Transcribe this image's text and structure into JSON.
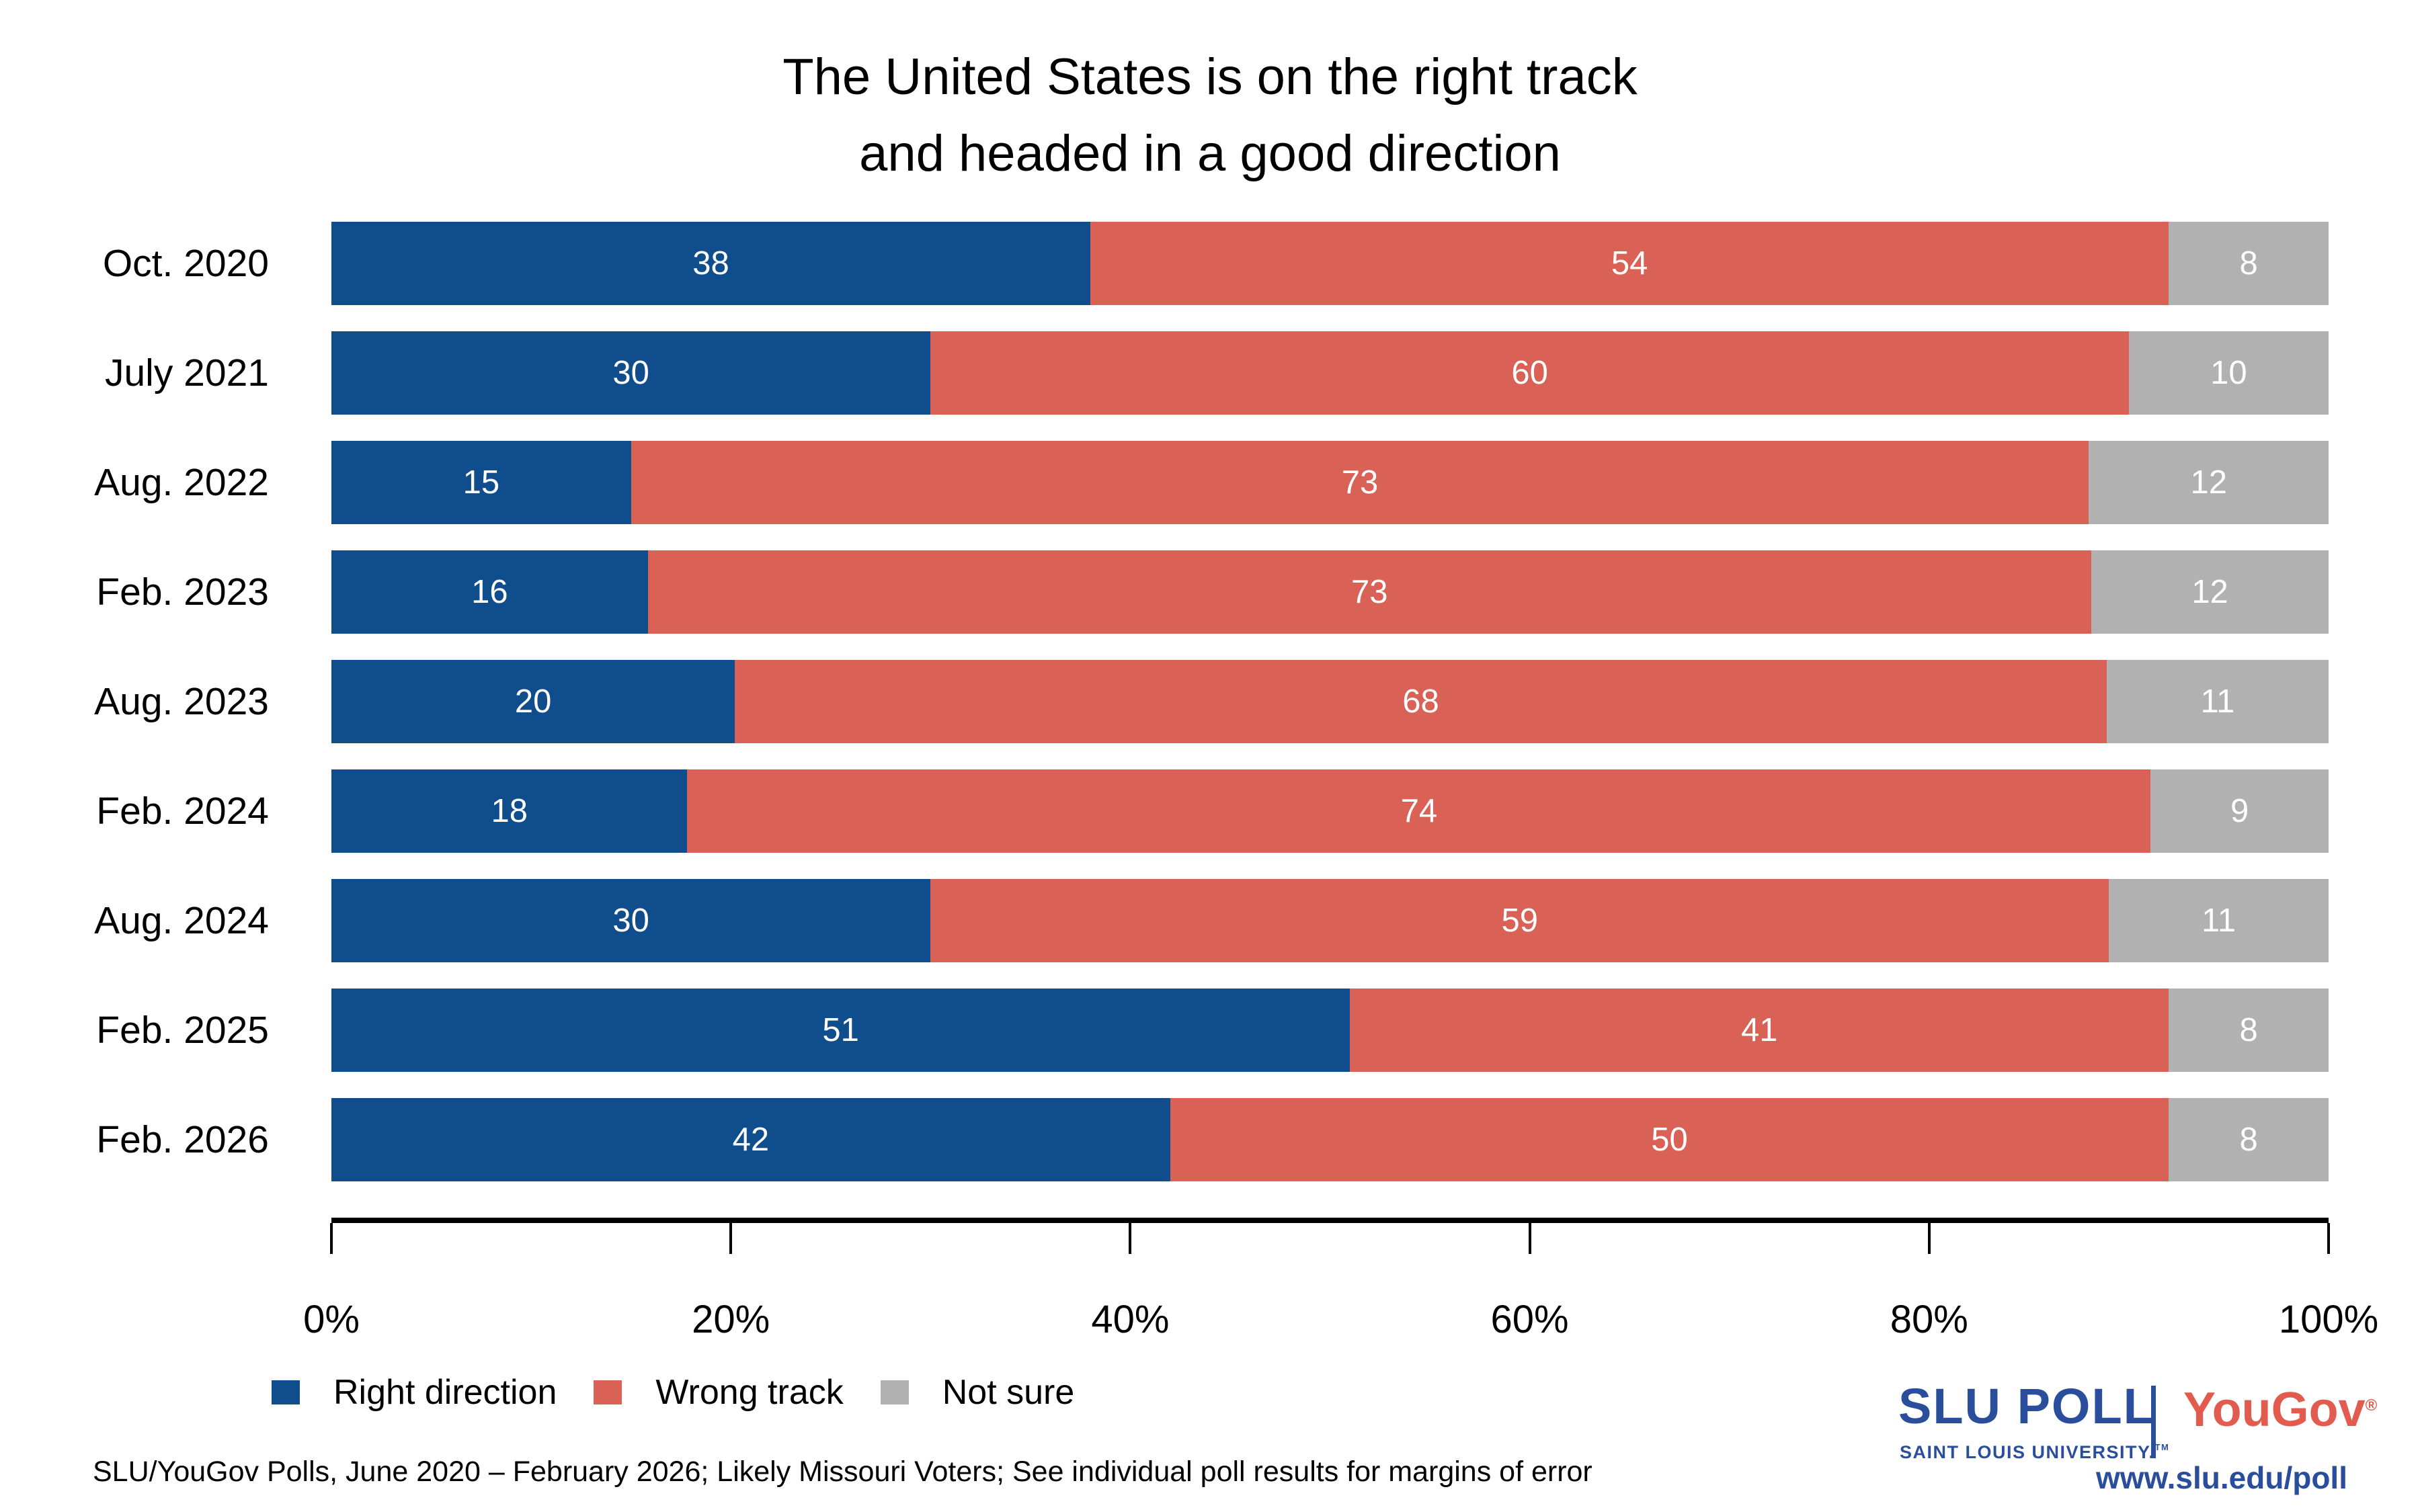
{
  "title": {
    "line1": "The United States is on the right track",
    "line2": "and headed in a good direction"
  },
  "chart_data": {
    "type": "bar",
    "stacked": true,
    "orientation": "horizontal",
    "title": "The United States is on the right track and headed in a good direction",
    "categories": [
      "Oct. 2020",
      "July 2021",
      "Aug. 2022",
      "Feb. 2023",
      "Aug. 2023",
      "Feb. 2024",
      "Aug. 2024",
      "Feb. 2025",
      "Feb. 2026"
    ],
    "series": [
      {
        "name": "Right direction",
        "color": "#104D8C",
        "values": [
          38,
          30,
          15,
          16,
          20,
          18,
          30,
          51,
          42
        ]
      },
      {
        "name": "Wrong track",
        "color": "#DA6156",
        "values": [
          54,
          60,
          73,
          73,
          68,
          74,
          59,
          41,
          50
        ]
      },
      {
        "name": "Not sure",
        "color": "#B1B1B1",
        "values": [
          8,
          10,
          12,
          12,
          11,
          9,
          11,
          8,
          8
        ]
      }
    ],
    "value_labels": "inside-white",
    "xlabel": "",
    "ylabel": "",
    "x_axis": {
      "ticks": [
        "0%",
        "20%",
        "40%",
        "60%",
        "80%",
        "100%"
      ],
      "range": [
        0,
        100
      ]
    },
    "legend_position": "bottom-left",
    "grid": false
  },
  "footer": {
    "source_note": "SLU/YouGov Polls, June 2020 – February 2026; Likely Missouri Voters; See individual poll results for margins of error"
  },
  "branding": {
    "slu_poll": {
      "slu": "SLU",
      "poll": "POLL",
      "subtitle": "SAINT LOUIS UNIVERSITY.",
      "trademark": "TM",
      "color": "#2A4E9B"
    },
    "yougov": {
      "name": "YouGov",
      "registered": "®",
      "color": "#E15B4E"
    },
    "url": "www.slu.edu/poll"
  }
}
